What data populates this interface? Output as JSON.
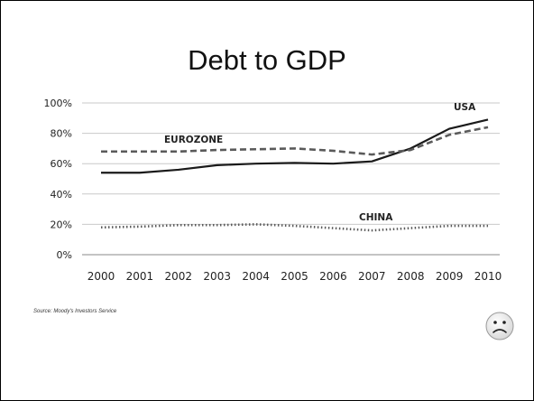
{
  "slide": {
    "title": "Debt to GDP",
    "source": "Source: Moody's Investors Service"
  },
  "chart_data": {
    "type": "line",
    "x": [
      "2000",
      "2001",
      "2002",
      "2003",
      "2004",
      "2005",
      "2006",
      "2007",
      "2008",
      "2009",
      "2010"
    ],
    "ylim": [
      0,
      100
    ],
    "yticks": [
      "0%",
      "20%",
      "40%",
      "60%",
      "80%",
      "100%"
    ],
    "grid": true,
    "series": [
      {
        "name": "USA",
        "style": "solid",
        "color": "#1a1a1a",
        "values": [
          54,
          54,
          56,
          59,
          60,
          60.5,
          60,
          61.5,
          70,
          83,
          89
        ]
      },
      {
        "name": "EUROZONE",
        "style": "dashed",
        "color": "#5a5a5a",
        "values": [
          68,
          68,
          68,
          69,
          69.5,
          70,
          68.5,
          66,
          69,
          79,
          84
        ]
      },
      {
        "name": "CHINA",
        "style": "dotted",
        "color": "#5a5a5a",
        "values": [
          18,
          18.5,
          19.5,
          19.5,
          20,
          19,
          17.5,
          16,
          17.5,
          19,
          19
        ]
      }
    ]
  },
  "icons": {
    "sad_face": "sad-face-icon"
  }
}
